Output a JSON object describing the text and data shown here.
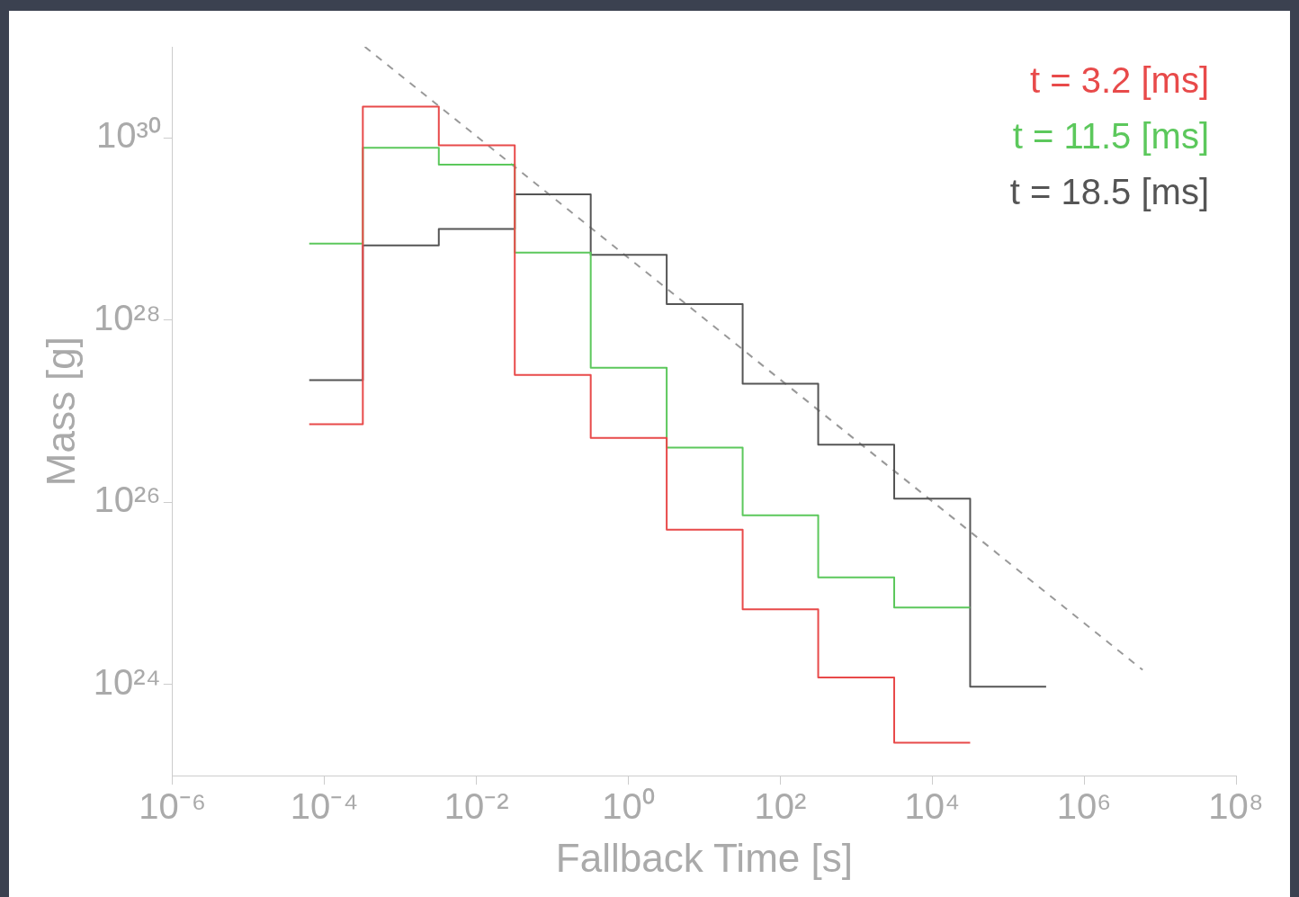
{
  "chart_data": {
    "type": "step",
    "xlabel": "Fallback Time [s]",
    "ylabel": "Mass [g]",
    "log": "xy",
    "grid": false,
    "legend": "top right",
    "marker": "none",
    "xlim": [
      1e-06,
      100000000.0
    ],
    "ylim": [
      1e+23,
      1e+31
    ],
    "xticks": [
      {
        "value": 1e-06,
        "label": "10⁻⁶"
      },
      {
        "value": 0.0001,
        "label": "10⁻⁴"
      },
      {
        "value": 0.01,
        "label": "10⁻²"
      },
      {
        "value": 1,
        "label": "10⁰"
      },
      {
        "value": 100,
        "label": "10²"
      },
      {
        "value": 10000,
        "label": "10⁴"
      },
      {
        "value": 1000000.0,
        "label": "10⁶"
      },
      {
        "value": 100000000.0,
        "label": "10⁸"
      }
    ],
    "yticks": [
      {
        "value": 1e+24,
        "label": "10²⁴"
      },
      {
        "value": 1e+26,
        "label": "10²⁶"
      },
      {
        "value": 1e+28,
        "label": "10²⁸"
      },
      {
        "value": 1e+30,
        "label": "10³⁰"
      }
    ],
    "series": [
      {
        "name": "t = 3.2 [ms]",
        "color": "#e84a4a",
        "x": [
          6.3e-05,
          0.00032,
          0.0032,
          0.032,
          0.32,
          3.2,
          32,
          316,
          3162,
          31623
        ],
        "values": [
          7.2e+26,
          2.2e+30,
          8.3e+29,
          2.5e+27,
          5.1e+26,
          5e+25,
          6.7e+24,
          1.2e+24,
          2.3e+23,
          2.3e+23
        ]
      },
      {
        "name": "t = 11.5 [ms]",
        "color": "#5cc85c",
        "x": [
          6.3e-05,
          0.00032,
          0.0032,
          0.032,
          0.32,
          3.2,
          32,
          316,
          3162,
          31623
        ],
        "values": [
          6.9e+28,
          7.8e+29,
          5.1e+29,
          5.5e+28,
          3e+27,
          4e+26,
          7.2e+25,
          1.5e+25,
          7e+24,
          7e+24
        ]
      },
      {
        "name": "t = 18.5 [ms]",
        "color": "#555555",
        "x": [
          6.3e-05,
          0.00032,
          0.0032,
          0.032,
          0.32,
          3.2,
          32,
          316,
          3162,
          31623,
          316228
        ],
        "values": [
          2.2e+27,
          6.6e+28,
          1e+29,
          2.4e+29,
          5.2e+28,
          1.5e+28,
          2e+27,
          4.3e+26,
          1.1e+26,
          9.5e+23,
          9.5e+23
        ]
      },
      {
        "type": "line",
        "color": "#999999",
        "line_style": "dashed",
        "x": [
          0.00034,
          5900000.0
        ],
        "values": [
          1e+31,
          1.45e+24
        ]
      }
    ]
  }
}
